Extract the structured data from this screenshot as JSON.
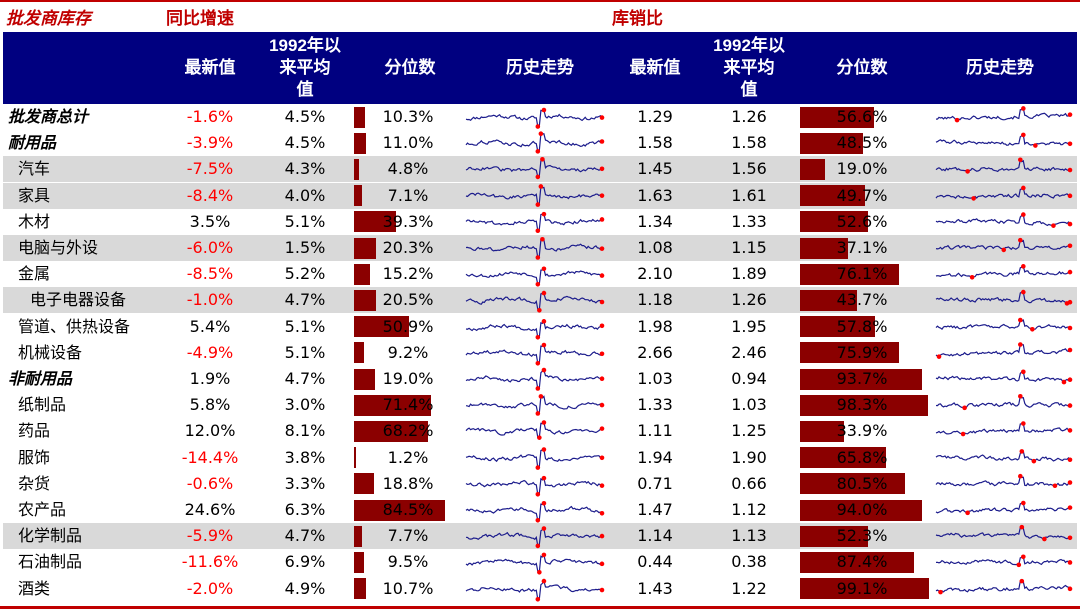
{
  "sections": {
    "left_title": "批发商库存",
    "yoy_title": "同比增速",
    "ratio_title": "库销比"
  },
  "headers": {
    "latest": "最新值",
    "avg_line1": "1992年以",
    "avg_line2": "来平均",
    "avg_line3": "值",
    "percentile": "分位数",
    "trend": "历史走势"
  },
  "colors": {
    "accent_red": "#c00000",
    "header_navy": "#000080",
    "bar_darkred": "#8b0000",
    "negative_red": "#ff0000",
    "shade_gray": "#d9d9d9",
    "spark_line": "#1c1c8c",
    "spark_marker": "#ff0000"
  },
  "rows": [
    {
      "label": "批发商总计",
      "category": true,
      "shaded": false,
      "yoy": {
        "latest": "-1.6%",
        "avg": "4.5%",
        "pct": "10.3%"
      },
      "ratio": {
        "latest": "1.29",
        "avg": "1.26",
        "pct": "56.6%"
      }
    },
    {
      "label": "耐用品",
      "category": true,
      "shaded": false,
      "yoy": {
        "latest": "-3.9%",
        "avg": "4.5%",
        "pct": "11.0%"
      },
      "ratio": {
        "latest": "1.58",
        "avg": "1.58",
        "pct": "48.5%"
      }
    },
    {
      "label": "汽车",
      "category": false,
      "shaded": true,
      "yoy": {
        "latest": "-7.5%",
        "avg": "4.3%",
        "pct": "4.8%"
      },
      "ratio": {
        "latest": "1.45",
        "avg": "1.56",
        "pct": "19.0%"
      }
    },
    {
      "label": "家具",
      "category": false,
      "shaded": true,
      "yoy": {
        "latest": "-8.4%",
        "avg": "4.0%",
        "pct": "7.1%"
      },
      "ratio": {
        "latest": "1.63",
        "avg": "1.61",
        "pct": "49.7%"
      }
    },
    {
      "label": "木材",
      "category": false,
      "shaded": false,
      "yoy": {
        "latest": "3.5%",
        "avg": "5.1%",
        "pct": "39.3%"
      },
      "ratio": {
        "latest": "1.34",
        "avg": "1.33",
        "pct": "52.6%"
      }
    },
    {
      "label": "电脑与外设",
      "category": false,
      "shaded": true,
      "yoy": {
        "latest": "-6.0%",
        "avg": "1.5%",
        "pct": "20.3%"
      },
      "ratio": {
        "latest": "1.08",
        "avg": "1.15",
        "pct": "37.1%"
      }
    },
    {
      "label": "金属",
      "category": false,
      "shaded": false,
      "yoy": {
        "latest": "-8.5%",
        "avg": "5.2%",
        "pct": "15.2%"
      },
      "ratio": {
        "latest": "2.10",
        "avg": "1.89",
        "pct": "76.1%"
      }
    },
    {
      "label": "电子电器设备",
      "category": false,
      "shaded": true,
      "yoy": {
        "latest": "-1.0%",
        "avg": "4.7%",
        "pct": "20.5%"
      },
      "ratio": {
        "latest": "1.18",
        "avg": "1.26",
        "pct": "43.7%"
      }
    },
    {
      "label": "管道、供热设备",
      "category": false,
      "shaded": false,
      "yoy": {
        "latest": "5.4%",
        "avg": "5.1%",
        "pct": "50.9%"
      },
      "ratio": {
        "latest": "1.98",
        "avg": "1.95",
        "pct": "57.8%"
      }
    },
    {
      "label": "机械设备",
      "category": false,
      "shaded": false,
      "yoy": {
        "latest": "-4.9%",
        "avg": "5.1%",
        "pct": "9.2%"
      },
      "ratio": {
        "latest": "2.66",
        "avg": "2.46",
        "pct": "75.9%"
      }
    },
    {
      "label": "非耐用品",
      "category": true,
      "shaded": false,
      "yoy": {
        "latest": "1.9%",
        "avg": "4.7%",
        "pct": "19.0%"
      },
      "ratio": {
        "latest": "1.03",
        "avg": "0.94",
        "pct": "93.7%"
      }
    },
    {
      "label": "纸制品",
      "category": false,
      "shaded": false,
      "yoy": {
        "latest": "5.8%",
        "avg": "3.0%",
        "pct": "71.4%"
      },
      "ratio": {
        "latest": "1.33",
        "avg": "1.03",
        "pct": "98.3%"
      }
    },
    {
      "label": "药品",
      "category": false,
      "shaded": false,
      "yoy": {
        "latest": "12.0%",
        "avg": "8.1%",
        "pct": "68.2%"
      },
      "ratio": {
        "latest": "1.11",
        "avg": "1.25",
        "pct": "33.9%"
      }
    },
    {
      "label": "服饰",
      "category": false,
      "shaded": false,
      "yoy": {
        "latest": "-14.4%",
        "avg": "3.8%",
        "pct": "1.2%"
      },
      "ratio": {
        "latest": "1.94",
        "avg": "1.90",
        "pct": "65.8%"
      }
    },
    {
      "label": "杂货",
      "category": false,
      "shaded": false,
      "yoy": {
        "latest": "-0.6%",
        "avg": "3.3%",
        "pct": "18.8%"
      },
      "ratio": {
        "latest": "0.71",
        "avg": "0.66",
        "pct": "80.5%"
      }
    },
    {
      "label": "农产品",
      "category": false,
      "shaded": false,
      "yoy": {
        "latest": "24.6%",
        "avg": "6.3%",
        "pct": "84.5%"
      },
      "ratio": {
        "latest": "1.47",
        "avg": "1.12",
        "pct": "94.0%"
      }
    },
    {
      "label": "化学制品",
      "category": false,
      "shaded": true,
      "yoy": {
        "latest": "-5.9%",
        "avg": "4.7%",
        "pct": "7.7%"
      },
      "ratio": {
        "latest": "1.14",
        "avg": "1.13",
        "pct": "52.3%"
      }
    },
    {
      "label": "石油制品",
      "category": false,
      "shaded": false,
      "yoy": {
        "latest": "-11.6%",
        "avg": "6.9%",
        "pct": "9.5%"
      },
      "ratio": {
        "latest": "0.44",
        "avg": "0.38",
        "pct": "87.4%"
      }
    },
    {
      "label": "酒类",
      "category": false,
      "shaded": false,
      "yoy": {
        "latest": "-2.0%",
        "avg": "4.9%",
        "pct": "10.7%"
      },
      "ratio": {
        "latest": "1.43",
        "avg": "1.22",
        "pct": "99.1%"
      }
    }
  ],
  "chart_data": {
    "type": "table",
    "columns_yoy": [
      "最新值",
      "1992年以来平均值",
      "分位数",
      "历史走势"
    ],
    "columns_ratio": [
      "最新值",
      "1992年以来平均值",
      "分位数",
      "历史走势"
    ],
    "percentile_bars_yoy": [
      10.3,
      11.0,
      4.8,
      7.1,
      39.3,
      20.3,
      15.2,
      20.5,
      50.9,
      9.2,
      19.0,
      71.4,
      68.2,
      1.2,
      18.8,
      84.5,
      7.7,
      9.5,
      10.7
    ],
    "percentile_bars_ratio": [
      56.6,
      48.5,
      19.0,
      49.7,
      52.6,
      37.1,
      76.1,
      43.7,
      57.8,
      75.9,
      93.7,
      98.3,
      33.9,
      65.8,
      80.5,
      94.0,
      52.3,
      87.4,
      99.1
    ]
  }
}
